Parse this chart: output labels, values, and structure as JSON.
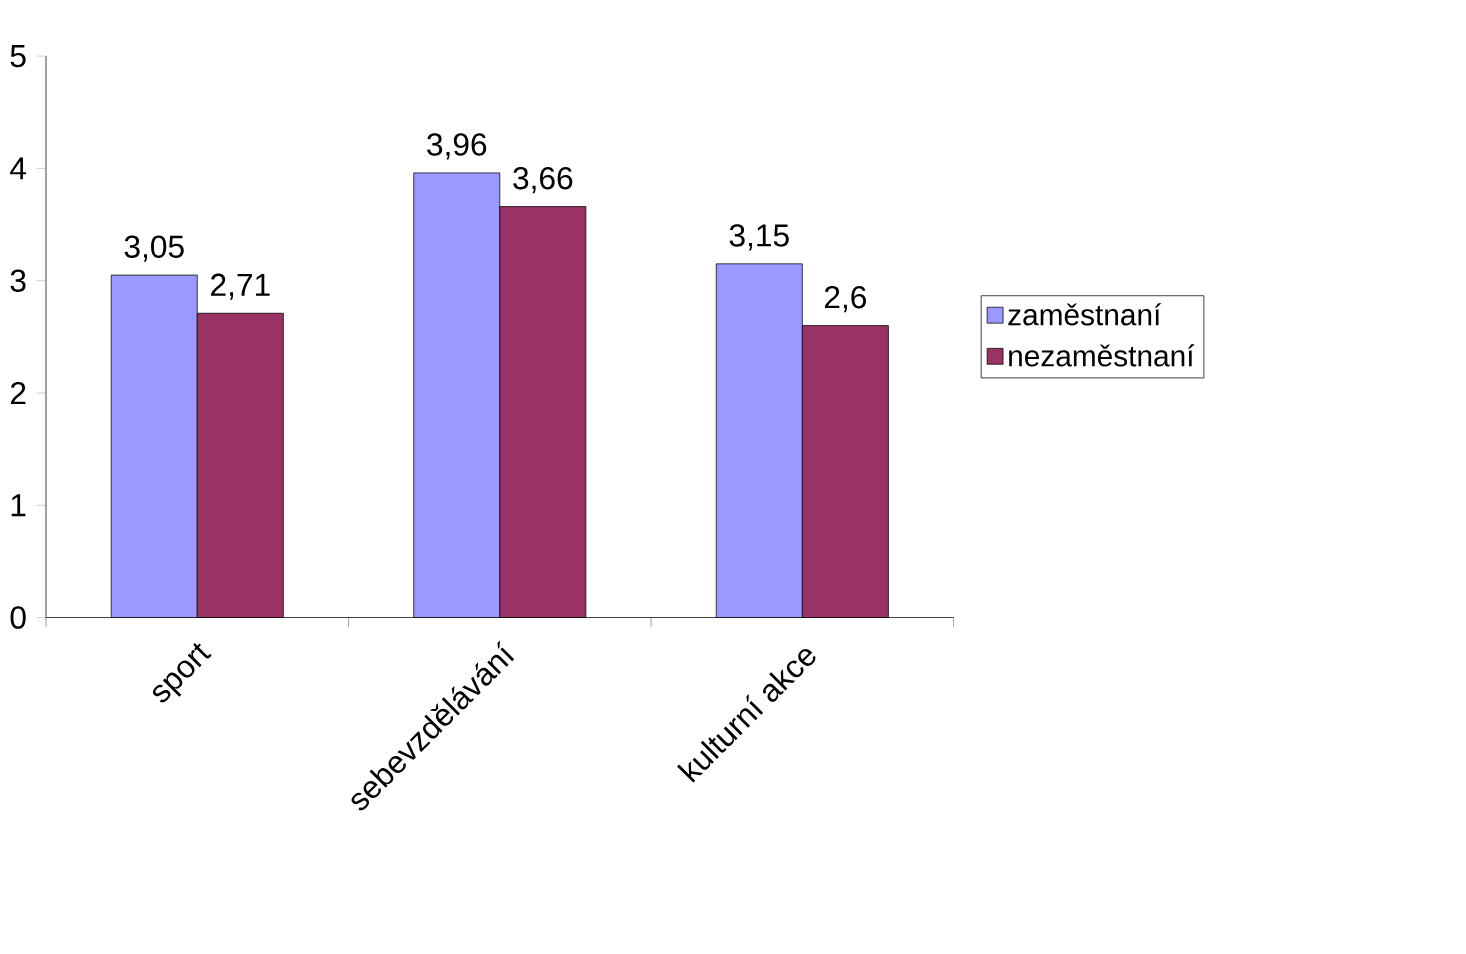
{
  "chart_data": {
    "type": "bar",
    "categories": [
      "sport",
      "sebevzdělávání",
      "kulturní akce"
    ],
    "series": [
      {
        "name": "zaměstnaní",
        "color": "#9999ff",
        "values": [
          3.05,
          3.96,
          3.15
        ],
        "value_labels": [
          "3,05",
          "3,96",
          "3,15"
        ]
      },
      {
        "name": "nezaměstnaní",
        "color": "#993366",
        "values": [
          2.71,
          3.66,
          2.6
        ],
        "value_labels": [
          "2,71",
          "3,66",
          "2,6"
        ]
      }
    ],
    "ylim": [
      0,
      5
    ],
    "yticks": [
      0,
      1,
      2,
      3,
      4,
      5
    ],
    "grid": false,
    "legend": "right"
  }
}
